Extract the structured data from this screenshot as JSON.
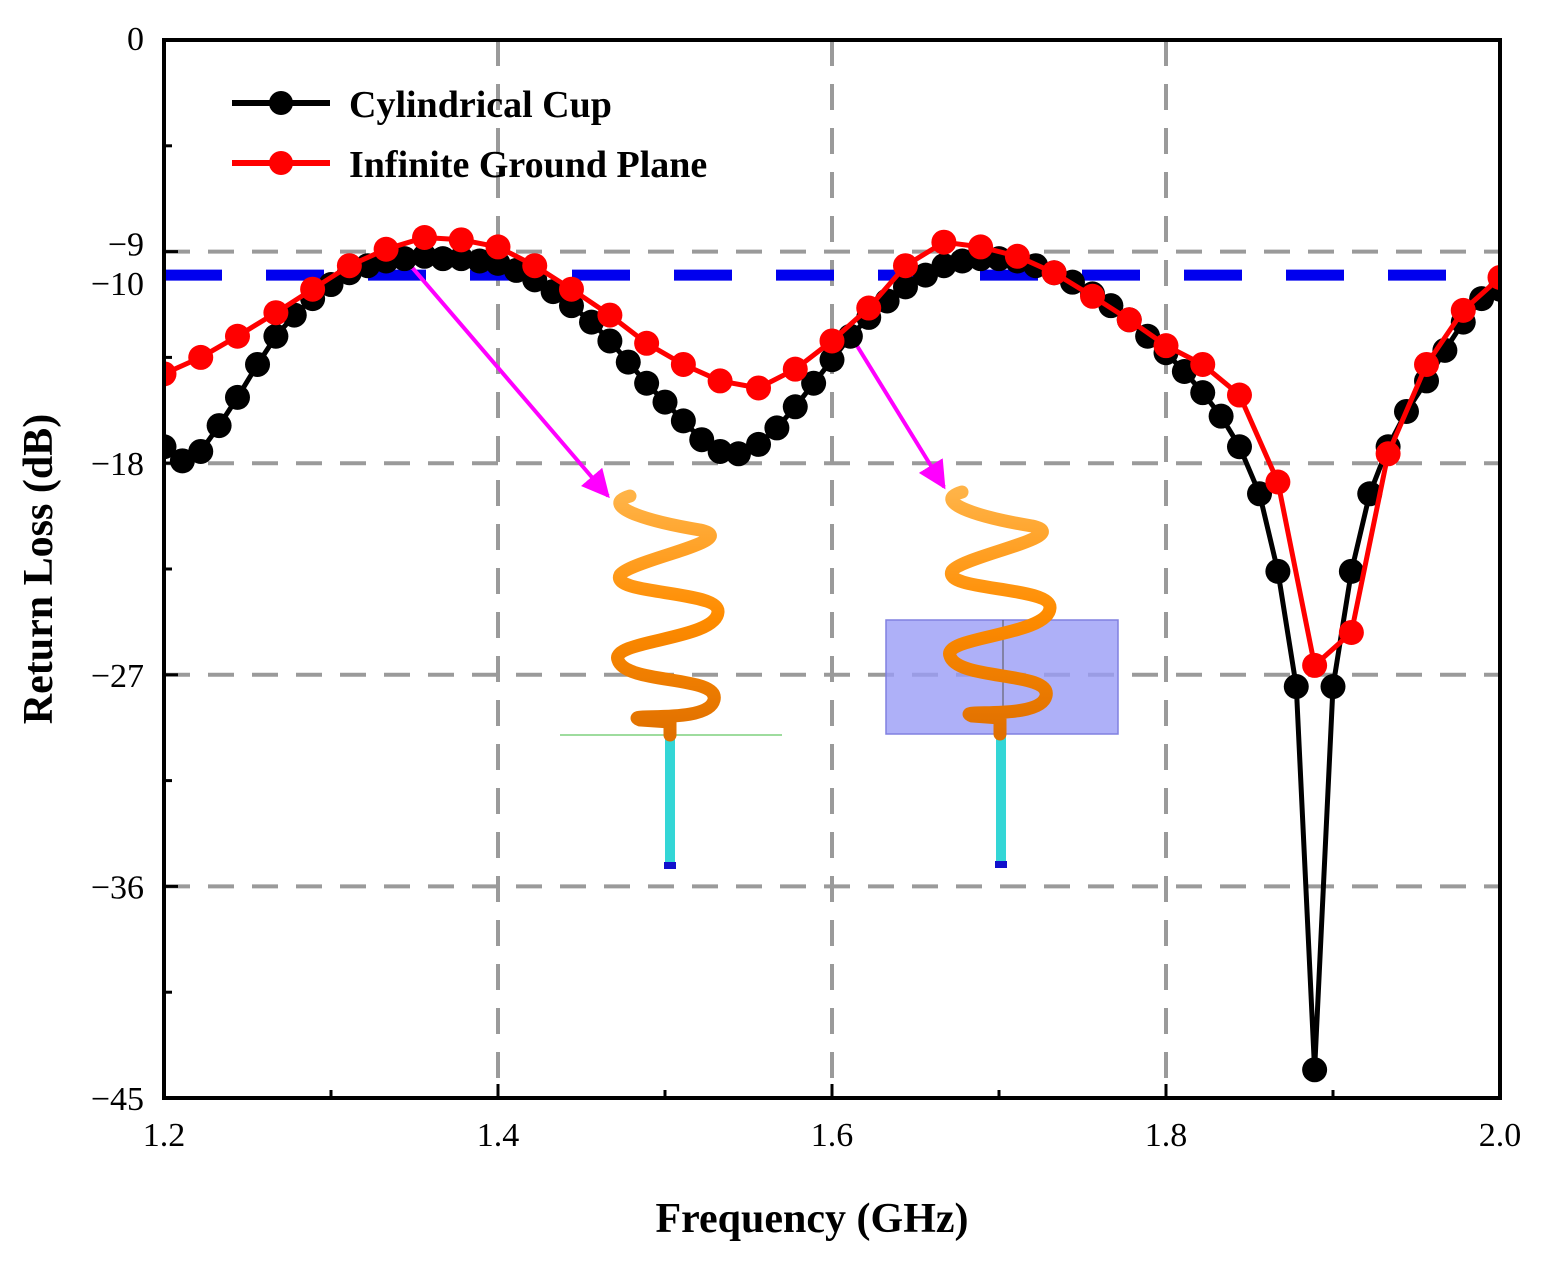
{
  "chart_data": {
    "type": "line",
    "xlabel": "Frequency (GHz)",
    "ylabel": "Return Loss (dB)",
    "xlim": [
      1.2,
      2.0
    ],
    "ylim": [
      -45,
      0
    ],
    "x_ticks": [
      {
        "value": 1.2,
        "label": "1.2"
      },
      {
        "value": 1.4,
        "label": "1.4"
      },
      {
        "value": 1.6,
        "label": "1.6"
      },
      {
        "value": 1.8,
        "label": "1.8"
      },
      {
        "value": 2.0,
        "label": "2.0"
      }
    ],
    "y_ticks": [
      {
        "value": 0,
        "label": "0"
      },
      {
        "value": -9,
        "label": "−9"
      },
      {
        "value": -10,
        "label": "−10"
      },
      {
        "value": -18,
        "label": "−18"
      },
      {
        "value": -27,
        "label": "−27"
      },
      {
        "value": -36,
        "label": "−36"
      },
      {
        "value": -45,
        "label": "−45"
      }
    ],
    "grid": "dashed, at y = -9, -18, -27, -36 and x = 1.4, 1.6, 1.8",
    "legend_position": "top-left",
    "reference_line": {
      "y": -10,
      "style": "dashed",
      "color": "#0000ee"
    },
    "series": [
      {
        "name": "Cylindrical Cup",
        "color": "#000000",
        "x": [
          1.2,
          1.211,
          1.222,
          1.233,
          1.244,
          1.256,
          1.267,
          1.278,
          1.289,
          1.3,
          1.311,
          1.322,
          1.333,
          1.344,
          1.356,
          1.367,
          1.378,
          1.389,
          1.4,
          1.411,
          1.422,
          1.433,
          1.444,
          1.456,
          1.467,
          1.478,
          1.489,
          1.5,
          1.511,
          1.522,
          1.533,
          1.544,
          1.556,
          1.567,
          1.578,
          1.589,
          1.6,
          1.611,
          1.622,
          1.633,
          1.644,
          1.656,
          1.667,
          1.678,
          1.689,
          1.7,
          1.711,
          1.722,
          1.733,
          1.744,
          1.756,
          1.767,
          1.778,
          1.789,
          1.8,
          1.811,
          1.822,
          1.833,
          1.844,
          1.856,
          1.867,
          1.878,
          1.889,
          1.9,
          1.911,
          1.922,
          1.933,
          1.944,
          1.956,
          1.967,
          1.978,
          1.989,
          2.0
        ],
        "values": [
          -17.3,
          -17.9,
          -17.5,
          -16.4,
          -15.2,
          -13.8,
          -12.6,
          -11.7,
          -11.0,
          -10.4,
          -9.9,
          -9.6,
          -9.4,
          -9.3,
          -9.2,
          -9.3,
          -9.3,
          -9.4,
          -9.5,
          -9.8,
          -10.2,
          -10.7,
          -11.3,
          -12.0,
          -12.8,
          -13.7,
          -14.6,
          -15.4,
          -16.2,
          -17.0,
          -17.5,
          -17.6,
          -17.2,
          -16.5,
          -15.6,
          -14.6,
          -13.6,
          -12.6,
          -11.8,
          -11.1,
          -10.5,
          -10.0,
          -9.6,
          -9.4,
          -9.3,
          -9.3,
          -9.4,
          -9.6,
          -9.9,
          -10.3,
          -10.8,
          -11.3,
          -11.9,
          -12.6,
          -13.3,
          -14.1,
          -15.0,
          -16.0,
          -17.3,
          -19.3,
          -22.6,
          -27.5,
          -43.8,
          -27.5,
          -22.6,
          -19.3,
          -17.3,
          -15.8,
          -14.5,
          -13.2,
          -12.0,
          -11.0,
          -10.6
        ]
      },
      {
        "name": "Infinite Ground Plane",
        "color": "#ff0000",
        "x": [
          1.2,
          1.222,
          1.244,
          1.267,
          1.289,
          1.311,
          1.333,
          1.356,
          1.378,
          1.4,
          1.422,
          1.444,
          1.467,
          1.489,
          1.511,
          1.533,
          1.556,
          1.578,
          1.6,
          1.622,
          1.644,
          1.667,
          1.689,
          1.711,
          1.733,
          1.756,
          1.778,
          1.8,
          1.822,
          1.844,
          1.867,
          1.889,
          1.911,
          1.933,
          1.956,
          1.978,
          2.0
        ],
        "values": [
          -14.2,
          -13.5,
          -12.6,
          -11.6,
          -10.6,
          -9.6,
          -8.9,
          -8.4,
          -8.5,
          -8.8,
          -9.6,
          -10.6,
          -11.7,
          -12.9,
          -13.8,
          -14.5,
          -14.8,
          -14.0,
          -12.8,
          -11.4,
          -9.6,
          -8.6,
          -8.8,
          -9.2,
          -9.9,
          -10.9,
          -11.9,
          -13.0,
          -13.8,
          -15.1,
          -18.8,
          -26.6,
          -25.2,
          -17.6,
          -13.8,
          -11.5,
          -10.1
        ]
      }
    ],
    "insets": [
      {
        "subject": "helix antenna on a ground plane",
        "points_to": "Infinite Ground Plane curve near 1.34 GHz"
      },
      {
        "subject": "helix antenna inside a cylindrical cup",
        "points_to": "Cylindrical Cup curve near 1.61 GHz"
      }
    ]
  }
}
